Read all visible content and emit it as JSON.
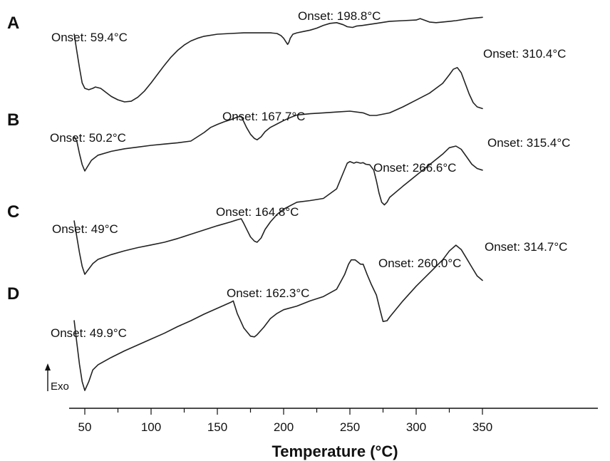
{
  "chart_data": {
    "type": "line",
    "xlabel": "Temperature (°C)",
    "xlim": [
      40,
      350
    ],
    "xticks": [
      50,
      100,
      150,
      200,
      250,
      300,
      350
    ],
    "exo_label": "Exo",
    "series": [
      {
        "name": "A",
        "x": [
          42,
          44,
          46,
          48,
          50,
          53,
          56,
          58,
          62,
          66,
          70,
          75,
          80,
          85,
          90,
          95,
          100,
          105,
          110,
          115,
          120,
          125,
          130,
          135,
          140,
          150,
          160,
          170,
          180,
          190,
          195,
          198,
          200,
          202,
          203,
          204,
          205,
          207,
          210,
          215,
          220,
          225,
          230,
          235,
          240,
          245,
          248,
          252,
          255,
          260,
          270,
          280,
          290,
          300,
          303,
          306,
          310,
          315,
          320,
          330,
          340,
          350
        ],
        "y": [
          0.0,
          -0.25,
          -0.5,
          -0.72,
          -0.8,
          -0.82,
          -0.8,
          -0.78,
          -0.8,
          -0.86,
          -0.92,
          -0.97,
          -1.0,
          -0.99,
          -0.93,
          -0.84,
          -0.72,
          -0.59,
          -0.46,
          -0.34,
          -0.24,
          -0.16,
          -0.1,
          -0.06,
          -0.03,
          0.0,
          0.01,
          0.02,
          0.02,
          0.02,
          0.01,
          -0.02,
          -0.06,
          -0.12,
          -0.15,
          -0.12,
          -0.06,
          0.0,
          0.02,
          0.04,
          0.06,
          0.09,
          0.13,
          0.16,
          0.17,
          0.14,
          0.11,
          0.1,
          0.12,
          0.13,
          0.16,
          0.19,
          0.2,
          0.21,
          0.23,
          0.21,
          0.18,
          0.17,
          0.18,
          0.2,
          0.23,
          0.25
        ]
      },
      {
        "name": "B",
        "x": [
          42,
          44,
          46,
          48,
          50,
          52,
          55,
          60,
          70,
          80,
          90,
          100,
          110,
          120,
          130,
          140,
          145,
          150,
          155,
          160,
          165,
          168,
          170,
          172,
          175,
          178,
          180,
          183,
          186,
          190,
          195,
          200,
          205,
          210,
          220,
          230,
          240,
          250,
          260,
          265,
          270,
          280,
          290,
          300,
          310,
          320,
          325,
          328,
          331,
          334,
          337,
          340,
          343,
          346,
          350
        ],
        "y": [
          -0.2,
          -0.3,
          -0.6,
          -0.85,
          -1.0,
          -0.9,
          -0.75,
          -0.63,
          -0.54,
          -0.48,
          -0.44,
          -0.4,
          -0.37,
          -0.34,
          -0.3,
          -0.1,
          0.02,
          0.09,
          0.15,
          0.2,
          0.26,
          0.28,
          0.15,
          0.02,
          -0.14,
          -0.24,
          -0.27,
          -0.2,
          -0.08,
          0.02,
          0.1,
          0.18,
          0.25,
          0.31,
          0.34,
          0.36,
          0.38,
          0.4,
          0.36,
          0.3,
          0.3,
          0.36,
          0.5,
          0.66,
          0.82,
          1.05,
          1.25,
          1.38,
          1.42,
          1.3,
          1.05,
          0.8,
          0.6,
          0.5,
          0.46
        ]
      },
      {
        "name": "C",
        "x": [
          42,
          44,
          46,
          48,
          50,
          53,
          56,
          60,
          70,
          80,
          90,
          100,
          110,
          120,
          130,
          140,
          150,
          160,
          165,
          168,
          170,
          172,
          175,
          178,
          180,
          183,
          186,
          190,
          195,
          200,
          210,
          220,
          230,
          240,
          245,
          248,
          250,
          253,
          255,
          258,
          260,
          262,
          265,
          268,
          270,
          272,
          274,
          276,
          278,
          280,
          290,
          300,
          310,
          320,
          325,
          330,
          334,
          338,
          342,
          346,
          350
        ],
        "y": [
          0.0,
          -0.3,
          -0.6,
          -0.85,
          -1.0,
          -0.9,
          -0.8,
          -0.72,
          -0.63,
          -0.56,
          -0.5,
          -0.45,
          -0.4,
          -0.33,
          -0.25,
          -0.17,
          -0.09,
          -0.02,
          0.02,
          0.04,
          -0.05,
          -0.15,
          -0.3,
          -0.38,
          -0.4,
          -0.32,
          -0.16,
          -0.02,
          0.12,
          0.22,
          0.35,
          0.38,
          0.42,
          0.6,
          0.9,
          1.08,
          1.11,
          1.08,
          1.1,
          1.08,
          1.09,
          1.06,
          1.05,
          0.95,
          0.75,
          0.52,
          0.35,
          0.3,
          0.35,
          0.44,
          0.65,
          0.85,
          1.05,
          1.25,
          1.37,
          1.4,
          1.34,
          1.2,
          1.06,
          0.98,
          0.95
        ]
      },
      {
        "name": "D",
        "x": [
          42,
          44,
          46,
          48,
          50,
          53,
          56,
          60,
          70,
          80,
          90,
          100,
          110,
          120,
          130,
          140,
          150,
          160,
          162,
          165,
          170,
          175,
          178,
          180,
          185,
          190,
          195,
          200,
          210,
          220,
          230,
          240,
          243,
          246,
          249,
          251,
          254,
          258,
          260,
          263,
          266,
          270,
          273,
          275,
          278,
          280,
          290,
          300,
          310,
          320,
          325,
          330,
          334,
          338,
          342,
          346,
          350
        ],
        "y": [
          -0.05,
          -0.35,
          -0.65,
          -0.88,
          -1.0,
          -0.88,
          -0.72,
          -0.65,
          -0.55,
          -0.46,
          -0.38,
          -0.3,
          -0.22,
          -0.13,
          -0.05,
          0.04,
          0.12,
          0.2,
          0.22,
          0.05,
          -0.15,
          -0.26,
          -0.27,
          -0.24,
          -0.14,
          -0.02,
          0.05,
          0.1,
          0.15,
          0.22,
          0.28,
          0.38,
          0.48,
          0.58,
          0.72,
          0.78,
          0.78,
          0.72,
          0.72,
          0.58,
          0.45,
          0.3,
          0.08,
          -0.06,
          -0.05,
          0.0,
          0.22,
          0.42,
          0.6,
          0.78,
          0.9,
          0.98,
          0.92,
          0.8,
          0.68,
          0.56,
          0.5
        ]
      }
    ],
    "annotations": [
      {
        "text": "Onset: 59.4°C"
      },
      {
        "text": "Onset: 198.8°C"
      },
      {
        "text": "Onset: 310.4°C"
      },
      {
        "text": "Onset: 50.2°C"
      },
      {
        "text": "Onset: 167.7°C"
      },
      {
        "text": "Onset: 315.4°C"
      },
      {
        "text": "Onset: 266.6°C"
      },
      {
        "text": "Onset: 49°C"
      },
      {
        "text": "Onset: 164.8°C"
      },
      {
        "text": "Onset: 314.7°C"
      },
      {
        "text": "Onset: 260.0°C"
      },
      {
        "text": "Onset: 162.3°C"
      },
      {
        "text": "Onset: 49.9°C"
      }
    ]
  }
}
